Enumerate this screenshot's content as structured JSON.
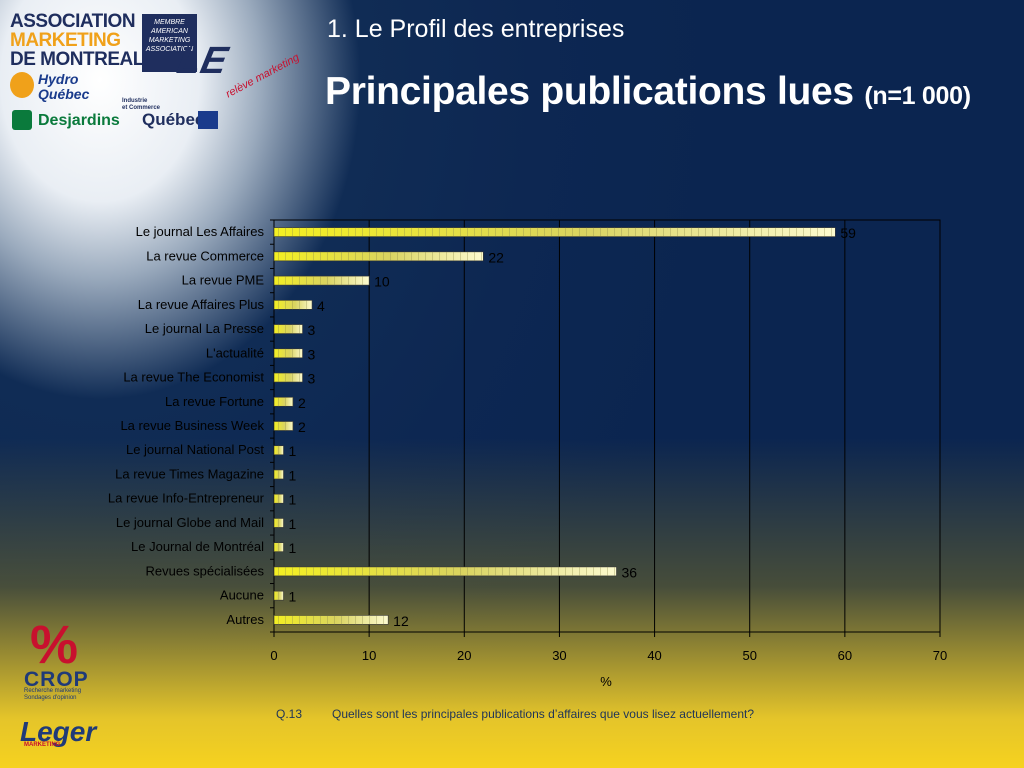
{
  "logos": {
    "association_lines": [
      "ASSOCIATION",
      "MARKETING",
      "DE MONTREAL"
    ],
    "ama_badge": "MEMBRE AMERICAN MARKETING ASSOCIATION",
    "le_mark": "LE",
    "le_sub": "relève marketing",
    "hydro": "Hydro\nQuébec",
    "industrie": "Industrie\net Commerce",
    "quebec": "Québec",
    "desjardins": "Desjardins",
    "crop_mark": "%",
    "crop": "CROP",
    "crop_sub": "Recherche marketing\nSondages d'opinion",
    "leger": "Leger",
    "leger_sub": "MARKETING"
  },
  "header": {
    "subtitle": "1. Le Profil des entreprises",
    "title": "Principales publications lues",
    "title_note": "(n=1 000)"
  },
  "footnote": {
    "number": "Q.13",
    "text": "Quelles sont les principales publications d’affaires que vous lisez actuellement?"
  },
  "colors": {
    "bar_bright": "#f4f022",
    "bar_light": "#fdfbcf",
    "bar_mid": "#d9d360",
    "axis": "#111111",
    "text": "#000000"
  },
  "chart_data": {
    "type": "bar",
    "orientation": "horizontal",
    "categories": [
      "Le journal Les Affaires",
      "La revue Commerce",
      "La revue PME",
      "La revue Affaires Plus",
      "Le journal La Presse",
      "L'actualité",
      "La revue The Economist",
      "La revue Fortune",
      "La revue Business Week",
      "Le journal National Post",
      "La revue Times Magazine",
      "La revue Info-Entrepreneur",
      "Le journal Globe and Mail",
      "Le Journal de Montréal",
      "Revues spécialisées",
      "Aucune",
      "Autres"
    ],
    "values": [
      59,
      22,
      10,
      4,
      3,
      3,
      3,
      2,
      2,
      1,
      1,
      1,
      1,
      1,
      36,
      1,
      12
    ],
    "xlabel": "%",
    "xlim": [
      0,
      70
    ],
    "xticks": [
      "0",
      "10",
      "20",
      "30",
      "40",
      "50",
      "60",
      "70"
    ],
    "grid": "vertical"
  }
}
